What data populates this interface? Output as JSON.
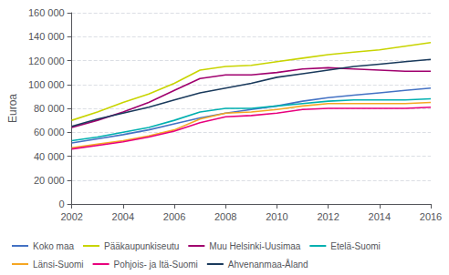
{
  "chart_data": {
    "type": "line",
    "ylabel": "Euroa",
    "x": [
      2002,
      2003,
      2004,
      2005,
      2006,
      2007,
      2008,
      2009,
      2010,
      2011,
      2012,
      2013,
      2014,
      2015,
      2016
    ],
    "series": [
      {
        "name": "Koko maa",
        "color": "#4472C4",
        "values": [
          51000,
          54500,
          58000,
          62000,
          67000,
          72000,
          76000,
          79000,
          82000,
          86000,
          89000,
          91000,
          93000,
          95000,
          97000
        ]
      },
      {
        "name": "Pääkaupunkiseutu",
        "color": "#C8D400",
        "values": [
          70000,
          77000,
          85000,
          92000,
          101000,
          112000,
          115000,
          116000,
          119000,
          122000,
          125000,
          127000,
          129000,
          132000,
          135000
        ]
      },
      {
        "name": "Muu Helsinki-Uusimaa",
        "color": "#A0006E",
        "values": [
          64000,
          70000,
          77000,
          85000,
          95000,
          105000,
          108000,
          108000,
          110000,
          113000,
          114000,
          113000,
          112000,
          111000,
          111000
        ]
      },
      {
        "name": "Etelä-Suomi",
        "color": "#00B0B0",
        "values": [
          53000,
          56000,
          60000,
          64000,
          70000,
          77000,
          80000,
          80000,
          82000,
          84000,
          86000,
          87000,
          87000,
          87000,
          88000
        ]
      },
      {
        "name": "Länsi-Suomi",
        "color": "#F5A623",
        "values": [
          47000,
          50000,
          53000,
          57000,
          62000,
          71000,
          76000,
          77000,
          79000,
          82000,
          84000,
          84000,
          84000,
          84000,
          85000
        ]
      },
      {
        "name": "Pohjois- ja Itä-Suomi",
        "color": "#E8007D",
        "values": [
          46000,
          49000,
          52000,
          56000,
          61000,
          68000,
          73000,
          74000,
          76000,
          79000,
          80000,
          80000,
          80000,
          80000,
          81000
        ]
      },
      {
        "name": "Ahvenanmaa-Åland",
        "color": "#1A3A5C",
        "values": [
          65000,
          71000,
          76000,
          81000,
          87000,
          93000,
          97000,
          101000,
          106000,
          109000,
          112000,
          115000,
          117000,
          119000,
          121000
        ]
      }
    ],
    "xlim": [
      2002,
      2016
    ],
    "xticks": [
      2002,
      2004,
      2006,
      2008,
      2010,
      2012,
      2014,
      2016
    ],
    "ylim": [
      0,
      160000
    ],
    "yticks": [
      0,
      {
        "value": 20000,
        "label": "20 000"
      },
      {
        "value": 40000,
        "label": "40 000"
      },
      {
        "value": 60000,
        "label": "60 000"
      },
      {
        "value": 80000,
        "label": "80 000"
      },
      {
        "value": 100000,
        "label": "100 000"
      },
      {
        "value": 120000,
        "label": "120 000"
      },
      {
        "value": 140000,
        "label": "140 000"
      },
      {
        "value": 160000,
        "label": "160 000"
      }
    ],
    "grid": true,
    "legend": "lower left"
  }
}
